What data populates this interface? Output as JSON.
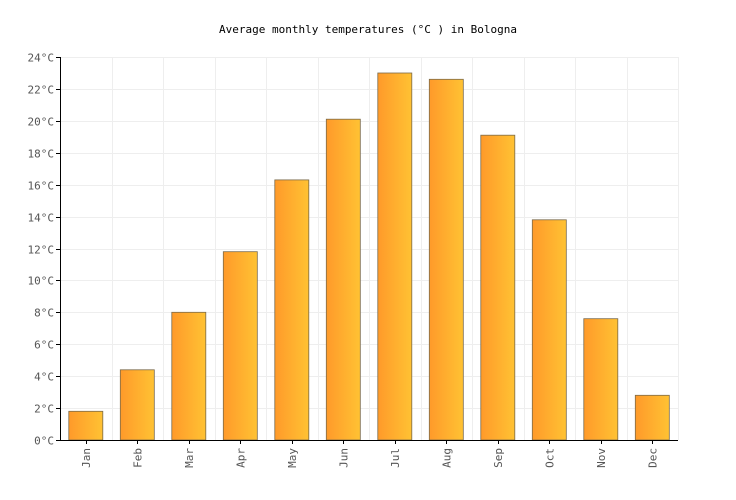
{
  "chart_data": {
    "type": "bar",
    "title": "Average monthly temperatures (°C ) in Bologna",
    "xlabel": "",
    "ylabel": "",
    "categories": [
      "Jan",
      "Feb",
      "Mar",
      "Apr",
      "May",
      "Jun",
      "Jul",
      "Aug",
      "Sep",
      "Oct",
      "Nov",
      "Dec"
    ],
    "series": [
      {
        "values": [
          1.8,
          4.4,
          8.0,
          11.8,
          16.3,
          20.1,
          23.0,
          22.6,
          19.1,
          13.8,
          7.6,
          2.8
        ]
      }
    ],
    "ylim": [
      0,
      24
    ],
    "yticks": [
      0,
      2,
      4,
      6,
      8,
      10,
      12,
      14,
      16,
      18,
      20,
      22,
      24
    ],
    "ytick_labels": [
      "0°C",
      "2°C",
      "4°C",
      "6°C",
      "8°C",
      "10°C",
      "12°C",
      "14°C",
      "16°C",
      "18°C",
      "20°C",
      "22°C",
      "24°C"
    ],
    "grid": true,
    "legend": "none",
    "colors": {
      "bar_gradient_start": "#ff9a2a",
      "bar_gradient_end": "#ffc233",
      "bar_stroke": "#7a6a4a",
      "grid": "#eeeeee",
      "axis": "#000000",
      "text": "#555555"
    }
  }
}
